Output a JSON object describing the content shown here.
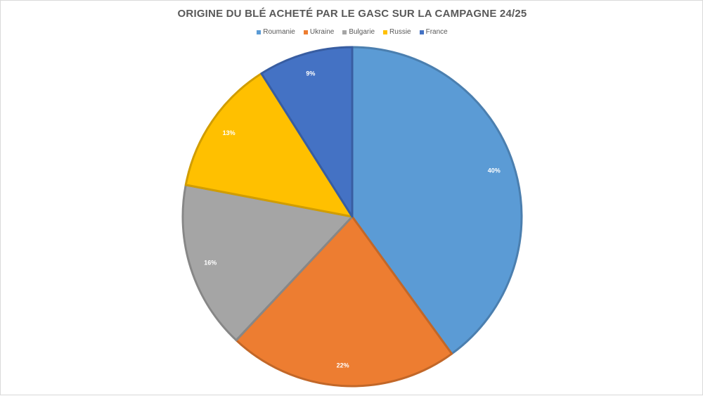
{
  "chart_data": {
    "type": "pie",
    "title": "ORIGINE DU BLÉ ACHETÉ PAR LE GASC SUR LA CAMPAGNE 24/25",
    "legend_position": "top",
    "unit": "%",
    "slices": [
      {
        "name": "Roumanie",
        "value": 40,
        "label": "40%",
        "color": "#5B9BD5"
      },
      {
        "name": "Ukraine",
        "value": 22,
        "label": "22%",
        "color": "#ED7D31"
      },
      {
        "name": "Bulgarie",
        "value": 16,
        "label": "16%",
        "color": "#A5A5A5"
      },
      {
        "name": "Russie",
        "value": 13,
        "label": "13%",
        "color": "#FFC000"
      },
      {
        "name": "France",
        "value": 9,
        "label": "9%",
        "color": "#4472C4"
      }
    ]
  }
}
